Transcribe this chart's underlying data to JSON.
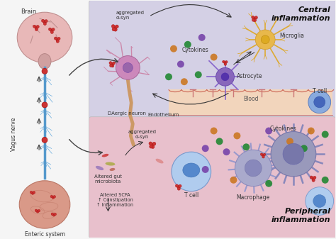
{
  "bg_color": "#f5f5f5",
  "central_bg": "#d4d0e5",
  "peripheral_bg": "#e8c0cc",
  "blood_bg": "#f2d5bc",
  "title_central": "Central\ninflammation",
  "title_peripheral": "Peripheral\ninflammation",
  "label_brain": "Brain",
  "label_vagus": "Vagus nerve",
  "label_enteric": "Enteric system",
  "label_daergic": "DAergic neuron",
  "label_endothelium": "Endothelium",
  "label_cytokines_top": "Cytokines",
  "label_cytokines_bot": "Cytokines",
  "label_microglia": "Microglia",
  "label_astrocyte": "Astrocyte",
  "label_tcell_top": "T cell",
  "label_tcell_bot": "T cell",
  "label_macrophage": "Macrophage",
  "label_blood": "Blood",
  "label_agg_top": "aggregated\nα-syn",
  "label_agg_bot": "aggregated\nα-syn",
  "label_gut": "Altered gut\nmicrobiota",
  "label_scfa": "Altered SCFA\n↑ Constipation\n↑ Inflammation",
  "neuron_color": "#cc88bb",
  "neuron_core": "#b06090",
  "microglia_color": "#e8b84b",
  "microglia_core": "#d4a030",
  "astrocyte_color": "#8866bb",
  "astrocyte_core": "#6644aa",
  "tcell_color": "#7faadd",
  "tcell_core": "#4477bb",
  "macrophage_color": "#9999cc",
  "macrophage_core": "#7777bb",
  "macrophage2_color": "#aaaadd",
  "macrophage2_core": "#8888cc",
  "alpha_syn_color": "#cc3333",
  "spine_color": "#5599cc",
  "brain_color": "#e8b8b8",
  "gut_color": "#d99988",
  "blood_line_color": "#cc6655",
  "arrow_color": "#333333",
  "text_color": "#333333"
}
